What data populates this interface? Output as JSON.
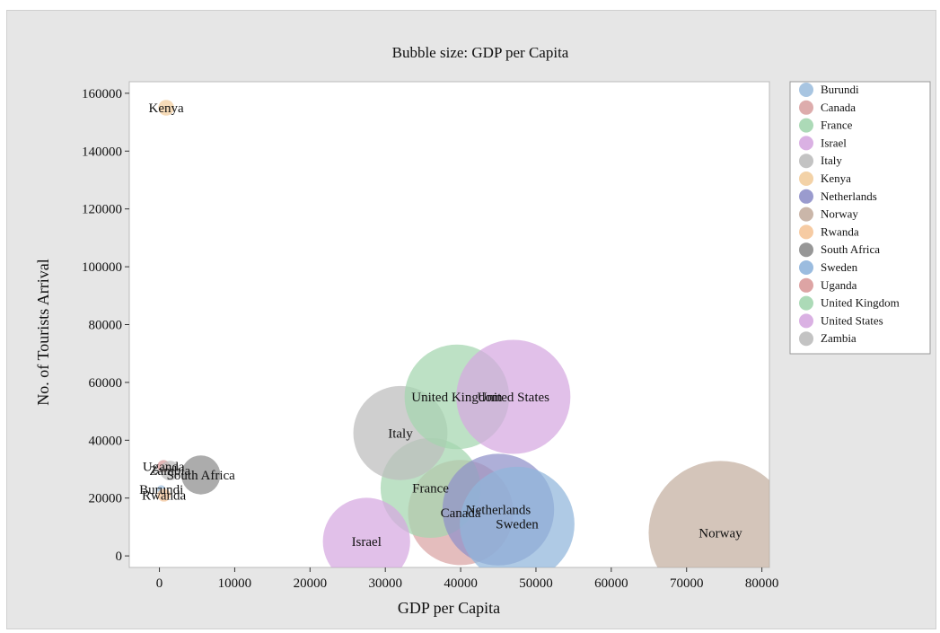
{
  "chart_data": {
    "type": "scatter",
    "title": "Bubble size: GDP per Capita",
    "xlabel": "GDP per Capita",
    "ylabel": "No. of Tourists Arrival",
    "xlim": [
      -4000,
      81000
    ],
    "ylim": [
      -4000,
      164000
    ],
    "xticks": [
      0,
      10000,
      20000,
      30000,
      40000,
      50000,
      60000,
      70000,
      80000
    ],
    "xtick_labels": [
      "0",
      "10000",
      "20000",
      "30000",
      "40000",
      "50000",
      "60000",
      "70000",
      "80000"
    ],
    "yticks": [
      0,
      20000,
      40000,
      60000,
      80000,
      100000,
      120000,
      140000,
      160000
    ],
    "ytick_labels": [
      "0",
      "20000",
      "40000",
      "60000",
      "80000",
      "100000",
      "120000",
      "140000",
      "160000"
    ],
    "legend_position": "right",
    "bubble_size": "GDP per Capita",
    "series": [
      {
        "name": "Burundi",
        "color": "#9fbfde",
        "x": 250,
        "y": 23000,
        "size": 250
      },
      {
        "name": "Canada",
        "color": "#d9a3a3",
        "x": 40000,
        "y": 15000,
        "size": 40000
      },
      {
        "name": "France",
        "color": "#a3d6af",
        "x": 36000,
        "y": 23500,
        "size": 36000
      },
      {
        "name": "Israel",
        "color": "#d6a8e0",
        "x": 27500,
        "y": 5000,
        "size": 27500
      },
      {
        "name": "Italy",
        "color": "#bcbcbc",
        "x": 32000,
        "y": 42500,
        "size": 32000
      },
      {
        "name": "Kenya",
        "color": "#f2cd9d",
        "x": 900,
        "y": 155000,
        "size": 900
      },
      {
        "name": "Netherlands",
        "color": "#8f90c9",
        "x": 45000,
        "y": 16000,
        "size": 45000
      },
      {
        "name": "Norway",
        "color": "#c4aea0",
        "x": 74500,
        "y": 8000,
        "size": 74500
      },
      {
        "name": "Rwanda",
        "color": "#f5c599",
        "x": 600,
        "y": 21000,
        "size": 600
      },
      {
        "name": "South Africa",
        "color": "#8c8c8c",
        "x": 5500,
        "y": 28000,
        "size": 5500
      },
      {
        "name": "Sweden",
        "color": "#90b5db",
        "x": 47500,
        "y": 11000,
        "size": 47500
      },
      {
        "name": "Uganda",
        "color": "#d99a9a",
        "x": 550,
        "y": 31000,
        "size": 550
      },
      {
        "name": "United Kingdom",
        "color": "#a3d6af",
        "x": 39500,
        "y": 55000,
        "size": 39500
      },
      {
        "name": "United States",
        "color": "#d6a8e0",
        "x": 47000,
        "y": 55000,
        "size": 47000
      },
      {
        "name": "Zambia",
        "color": "#bcbcbc",
        "x": 1400,
        "y": 29500,
        "size": 1400
      }
    ]
  }
}
